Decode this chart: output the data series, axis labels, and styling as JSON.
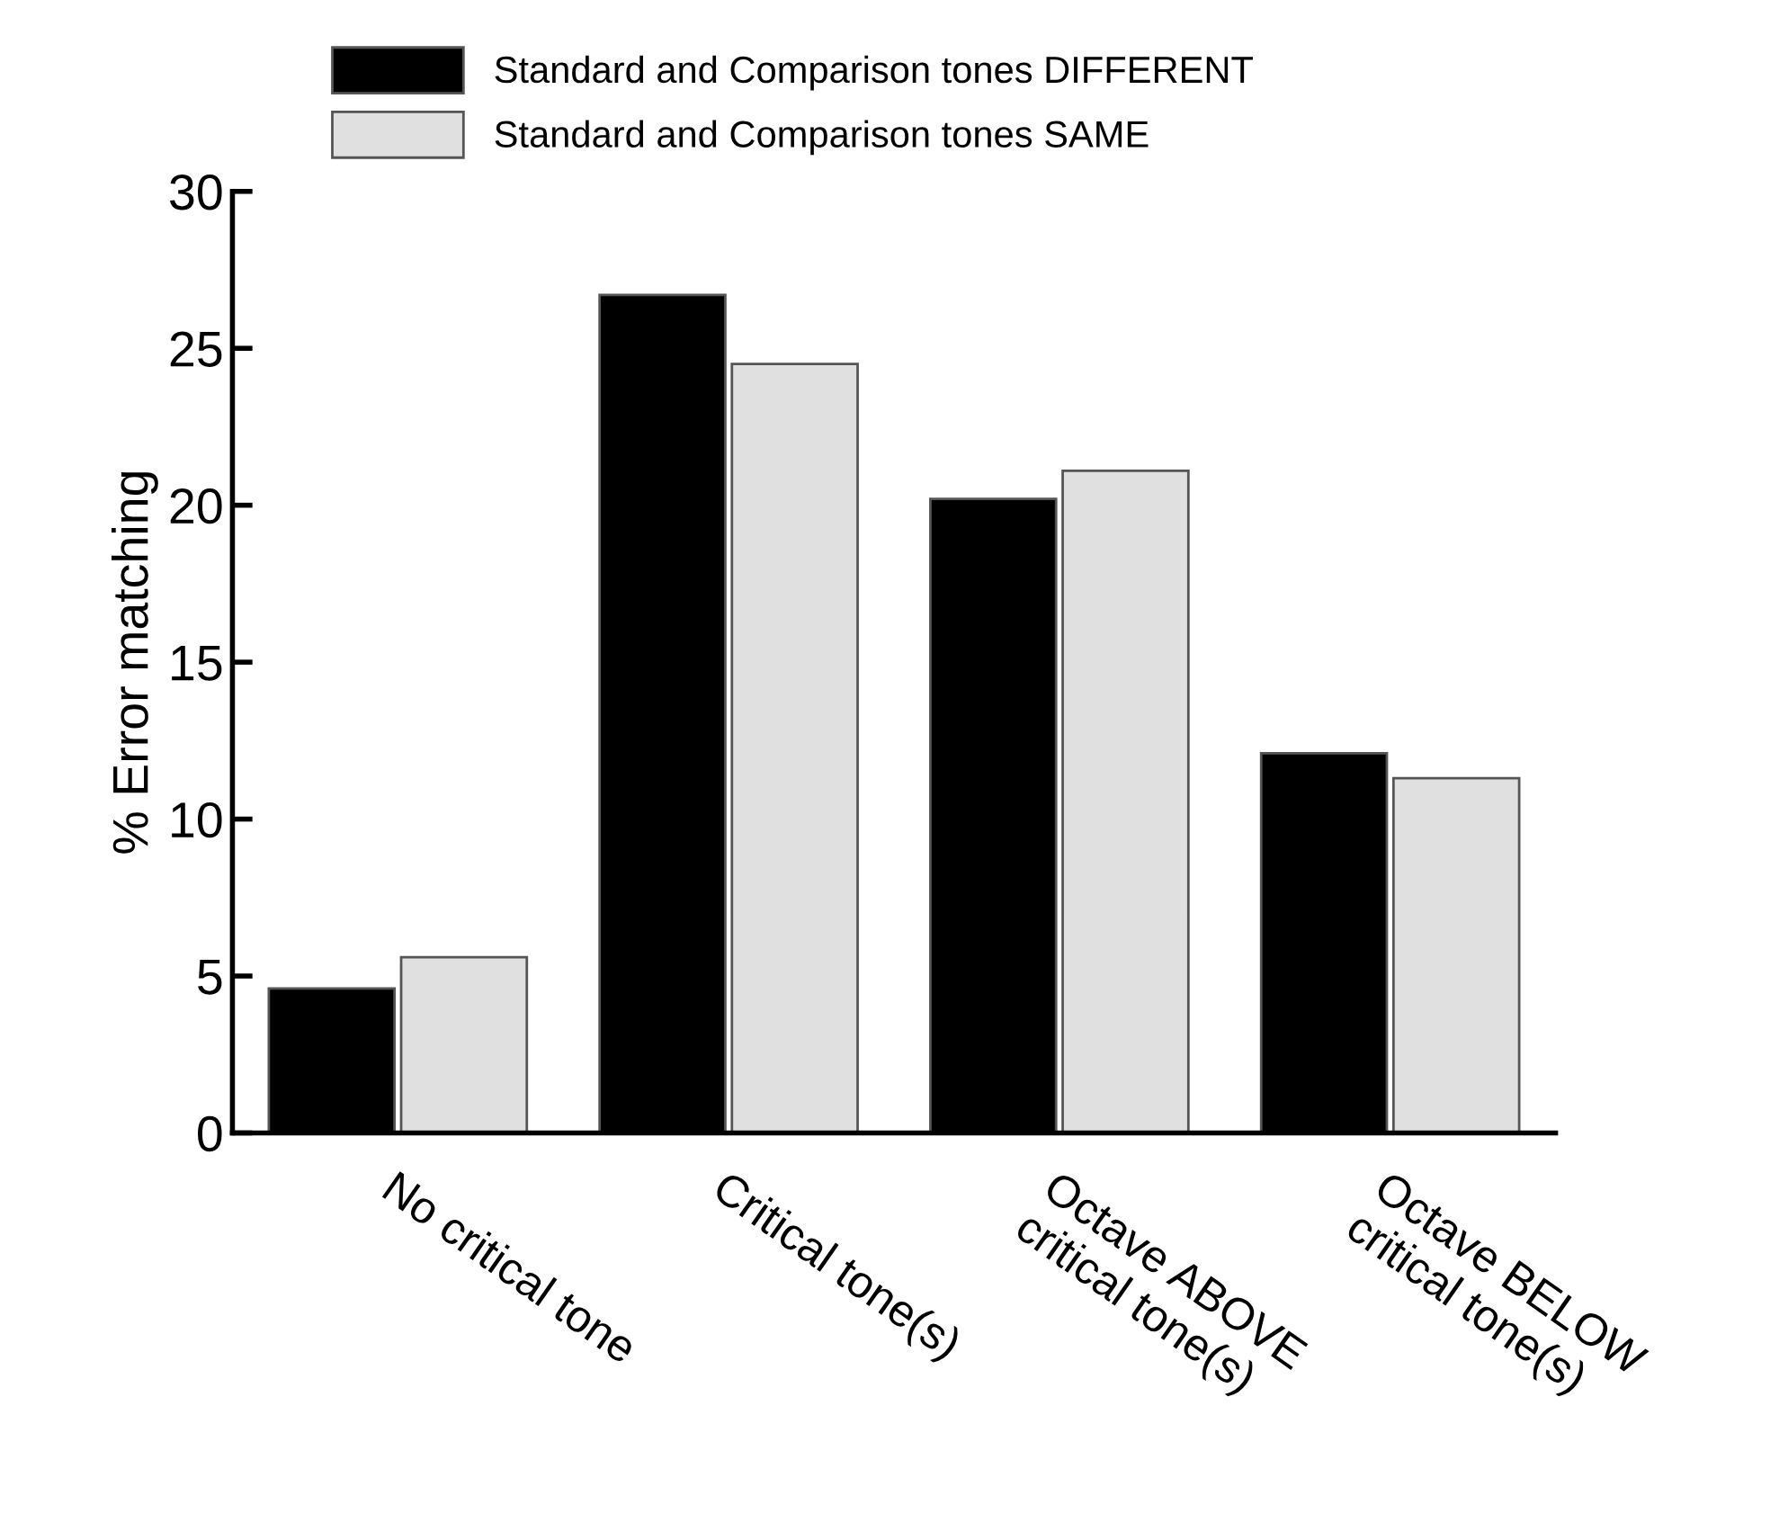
{
  "chart_data": {
    "type": "bar",
    "ylabel": "% Error matching",
    "categories": [
      "No critical tone",
      "Critical tone(s)",
      "Octave ABOVE\ncritical tone(s)",
      "Octave BELOW\ncritical tone(s)"
    ],
    "series": [
      {
        "name": "Standard and Comparison tones DIFFERENT",
        "color": "#000000",
        "values": [
          4.6,
          26.7,
          20.2,
          12.1
        ]
      },
      {
        "name": "Standard and Comparison tones SAME",
        "color": "#e0e0e0",
        "values": [
          5.6,
          24.5,
          21.1,
          11.3
        ]
      }
    ],
    "ylim": [
      0,
      30
    ],
    "yticks": [
      0,
      5,
      10,
      15,
      20,
      25,
      30
    ],
    "grid": false,
    "legend": "top"
  }
}
